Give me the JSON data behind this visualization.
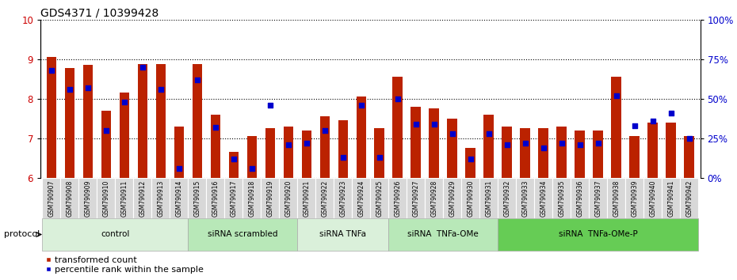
{
  "title": "GDS4371 / 10399428",
  "samples": [
    "GSM790907",
    "GSM790908",
    "GSM790909",
    "GSM790910",
    "GSM790911",
    "GSM790912",
    "GSM790913",
    "GSM790914",
    "GSM790915",
    "GSM790916",
    "GSM790917",
    "GSM790918",
    "GSM790919",
    "GSM790920",
    "GSM790921",
    "GSM790922",
    "GSM790923",
    "GSM790924",
    "GSM790925",
    "GSM790926",
    "GSM790927",
    "GSM790928",
    "GSM790929",
    "GSM790930",
    "GSM790931",
    "GSM790932",
    "GSM790933",
    "GSM790934",
    "GSM790935",
    "GSM790936",
    "GSM790937",
    "GSM790938",
    "GSM790939",
    "GSM790940",
    "GSM790941",
    "GSM790942"
  ],
  "red_values": [
    9.05,
    8.78,
    8.85,
    7.7,
    8.15,
    8.88,
    8.88,
    7.3,
    8.88,
    7.6,
    6.65,
    7.05,
    7.25,
    7.3,
    7.2,
    7.55,
    7.45,
    8.05,
    7.25,
    8.55,
    7.8,
    7.75,
    7.5,
    6.75,
    7.6,
    7.3,
    7.25,
    7.25,
    7.3,
    7.2,
    7.2,
    8.55,
    7.05,
    7.4,
    7.4,
    7.05
  ],
  "blue_percentiles": [
    68,
    56,
    57,
    30,
    48,
    70,
    56,
    6,
    62,
    32,
    12,
    6,
    46,
    21,
    22,
    30,
    13,
    46,
    13,
    50,
    34,
    34,
    28,
    12,
    28,
    21,
    22,
    19,
    22,
    21,
    22,
    52,
    33,
    36,
    41,
    25
  ],
  "protocols": [
    {
      "label": "control",
      "start": 0,
      "end": 8
    },
    {
      "label": "siRNA scrambled",
      "start": 8,
      "end": 14
    },
    {
      "label": "siRNA TNFa",
      "start": 14,
      "end": 19
    },
    {
      "label": "siRNA  TNFa-OMe",
      "start": 19,
      "end": 25
    },
    {
      "label": "siRNA  TNFa-OMe-P",
      "start": 25,
      "end": 36
    }
  ],
  "protocol_colors": [
    "#daf0da",
    "#b8e8b8",
    "#daf0da",
    "#b8e8b8",
    "#66cc55"
  ],
  "ylim_left": [
    6,
    10
  ],
  "ylim_right": [
    0,
    100
  ],
  "yticks_left": [
    6,
    7,
    8,
    9,
    10
  ],
  "yticks_right": [
    0,
    25,
    50,
    75,
    100
  ],
  "bar_color_red": "#bb2200",
  "bar_color_blue": "#0000cc",
  "bar_width": 0.55,
  "title_fontsize": 10,
  "yaxis_color_red": "#cc0000",
  "yaxis_color_blue": "#0000cc",
  "sample_box_color": "#d8d8d8",
  "sample_label_fontsize": 5.5
}
